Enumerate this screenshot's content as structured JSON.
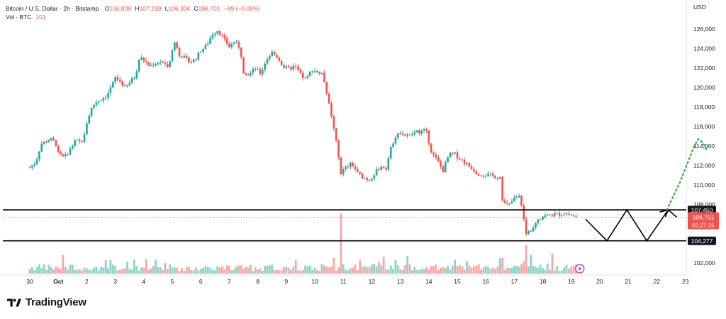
{
  "header": {
    "symbol": "Bitcoin / U.S. Dollar · 2h · Bitstamp",
    "o_label": "O",
    "o_value": "106,808",
    "h_label": "H",
    "h_value": "107,219",
    "l_label": "L",
    "l_value": "106,304",
    "c_label": "C",
    "c_value": "106,701",
    "change": "−89 (−0.08%)",
    "vol_label": "Vol · BTC",
    "vol_value": "101"
  },
  "currency": "USD",
  "brand": "TradingView",
  "colors": {
    "up": "#26a69a",
    "down": "#ef5350",
    "vol_up": "#8fd3c8",
    "vol_down": "#f7a8a6",
    "line": "#000000",
    "projection": "#4caf50",
    "flash": "#9c27b0"
  },
  "chart_data": {
    "type": "candlestick",
    "ylim": [
      101000,
      127000
    ],
    "y_ticks": [
      "126,000",
      "124,000",
      "122,000",
      "120,000",
      "118,000",
      "116,000",
      "114,000",
      "112,000",
      "110,000",
      "108,000",
      "102,000"
    ],
    "x_ticks": [
      "30",
      "Oct",
      "2",
      "3",
      "4",
      "5",
      "6",
      "7",
      "8",
      "9",
      "10",
      "11",
      "12",
      "13",
      "14",
      "15",
      "16",
      "17",
      "18",
      "19",
      "20",
      "21",
      "22",
      "23"
    ],
    "x_range": [
      0,
      23
    ],
    "levels": [
      {
        "price": 107450,
        "label": "107,450"
      },
      {
        "price": 104277,
        "label": "104,277"
      }
    ],
    "last_price": {
      "price": 106701,
      "label": "106,701",
      "countdown": "01:27:15"
    },
    "close_path": [
      [
        0,
        111800
      ],
      [
        0.2,
        112300
      ],
      [
        0.4,
        114200
      ],
      [
        0.7,
        114700
      ],
      [
        0.9,
        114400
      ],
      [
        1.0,
        113200
      ],
      [
        1.2,
        112800
      ],
      [
        1.4,
        113600
      ],
      [
        1.6,
        114500
      ],
      [
        1.8,
        114400
      ],
      [
        1.9,
        114800
      ],
      [
        2.0,
        116400
      ],
      [
        2.15,
        117800
      ],
      [
        2.3,
        118500
      ],
      [
        2.5,
        118800
      ],
      [
        2.7,
        119200
      ],
      [
        2.9,
        120300
      ],
      [
        3.0,
        121000
      ],
      [
        3.2,
        120600
      ],
      [
        3.35,
        119900
      ],
      [
        3.5,
        120500
      ],
      [
        3.7,
        121200
      ],
      [
        3.85,
        123100
      ],
      [
        4.0,
        122800
      ],
      [
        4.2,
        122200
      ],
      [
        4.4,
        122500
      ],
      [
        4.6,
        122700
      ],
      [
        4.8,
        122100
      ],
      [
        4.9,
        122700
      ],
      [
        5.1,
        124800
      ],
      [
        5.25,
        123400
      ],
      [
        5.4,
        123100
      ],
      [
        5.6,
        122600
      ],
      [
        5.8,
        122900
      ],
      [
        6.0,
        123800
      ],
      [
        6.2,
        124300
      ],
      [
        6.4,
        125500
      ],
      [
        6.6,
        125900
      ],
      [
        6.8,
        125000
      ],
      [
        7.0,
        124200
      ],
      [
        7.2,
        124800
      ],
      [
        7.4,
        123600
      ],
      [
        7.5,
        121700
      ],
      [
        7.7,
        121300
      ],
      [
        7.9,
        122000
      ],
      [
        8.1,
        121400
      ],
      [
        8.3,
        122900
      ],
      [
        8.5,
        123600
      ],
      [
        8.7,
        123100
      ],
      [
        8.9,
        122100
      ],
      [
        9.1,
        121900
      ],
      [
        9.3,
        122200
      ],
      [
        9.5,
        121300
      ],
      [
        9.7,
        120800
      ],
      [
        9.9,
        121900
      ],
      [
        10.1,
        121600
      ],
      [
        10.3,
        121200
      ],
      [
        10.5,
        118200
      ],
      [
        10.7,
        115200
      ],
      [
        10.8,
        113600
      ],
      [
        10.9,
        111200
      ],
      [
        11.1,
        111800
      ],
      [
        11.3,
        112200
      ],
      [
        11.5,
        111200
      ],
      [
        11.7,
        110800
      ],
      [
        11.9,
        110500
      ],
      [
        12.1,
        111200
      ],
      [
        12.3,
        111900
      ],
      [
        12.5,
        111800
      ],
      [
        12.7,
        114100
      ],
      [
        12.9,
        115500
      ],
      [
        13.1,
        115200
      ],
      [
        13.3,
        115000
      ],
      [
        13.5,
        115400
      ],
      [
        13.7,
        115500
      ],
      [
        13.9,
        115600
      ],
      [
        14.1,
        113300
      ],
      [
        14.3,
        112500
      ],
      [
        14.5,
        111500
      ],
      [
        14.7,
        113100
      ],
      [
        14.9,
        113200
      ],
      [
        15.1,
        112700
      ],
      [
        15.3,
        112200
      ],
      [
        15.5,
        111800
      ],
      [
        15.7,
        111200
      ],
      [
        15.9,
        111100
      ],
      [
        16.1,
        111000
      ],
      [
        16.3,
        110900
      ],
      [
        16.5,
        110800
      ],
      [
        16.6,
        108200
      ],
      [
        16.8,
        107900
      ],
      [
        17.0,
        108600
      ],
      [
        17.2,
        108800
      ],
      [
        17.3,
        107200
      ],
      [
        17.4,
        104900
      ],
      [
        17.6,
        105500
      ],
      [
        17.8,
        106500
      ],
      [
        18.0,
        106800
      ],
      [
        18.2,
        106900
      ],
      [
        18.4,
        107000
      ],
      [
        18.6,
        107000
      ],
      [
        18.8,
        107100
      ],
      [
        19.0,
        106900
      ],
      [
        19.2,
        106701
      ]
    ],
    "volume_spikes": [
      {
        "x": 3.7,
        "value": 20
      },
      {
        "x": 10.7,
        "value": 22
      },
      {
        "x": 10.95,
        "value": 85
      },
      {
        "x": 16.6,
        "value": 22
      },
      {
        "x": 17.45,
        "value": 40
      },
      {
        "x": 17.6,
        "value": 26
      }
    ],
    "projection_zigzag": [
      [
        19.5,
        106500
      ],
      [
        20.25,
        104277
      ],
      [
        20.95,
        107450
      ],
      [
        21.65,
        104277
      ],
      [
        22.4,
        107450
      ],
      [
        22.7,
        106700
      ]
    ],
    "projection_dotted": [
      [
        22.35,
        107450
      ],
      [
        22.8,
        110200
      ],
      [
        23.3,
        113900
      ],
      [
        23.45,
        114700
      ],
      [
        23.6,
        114400
      ],
      [
        23.75,
        113600
      ]
    ]
  }
}
